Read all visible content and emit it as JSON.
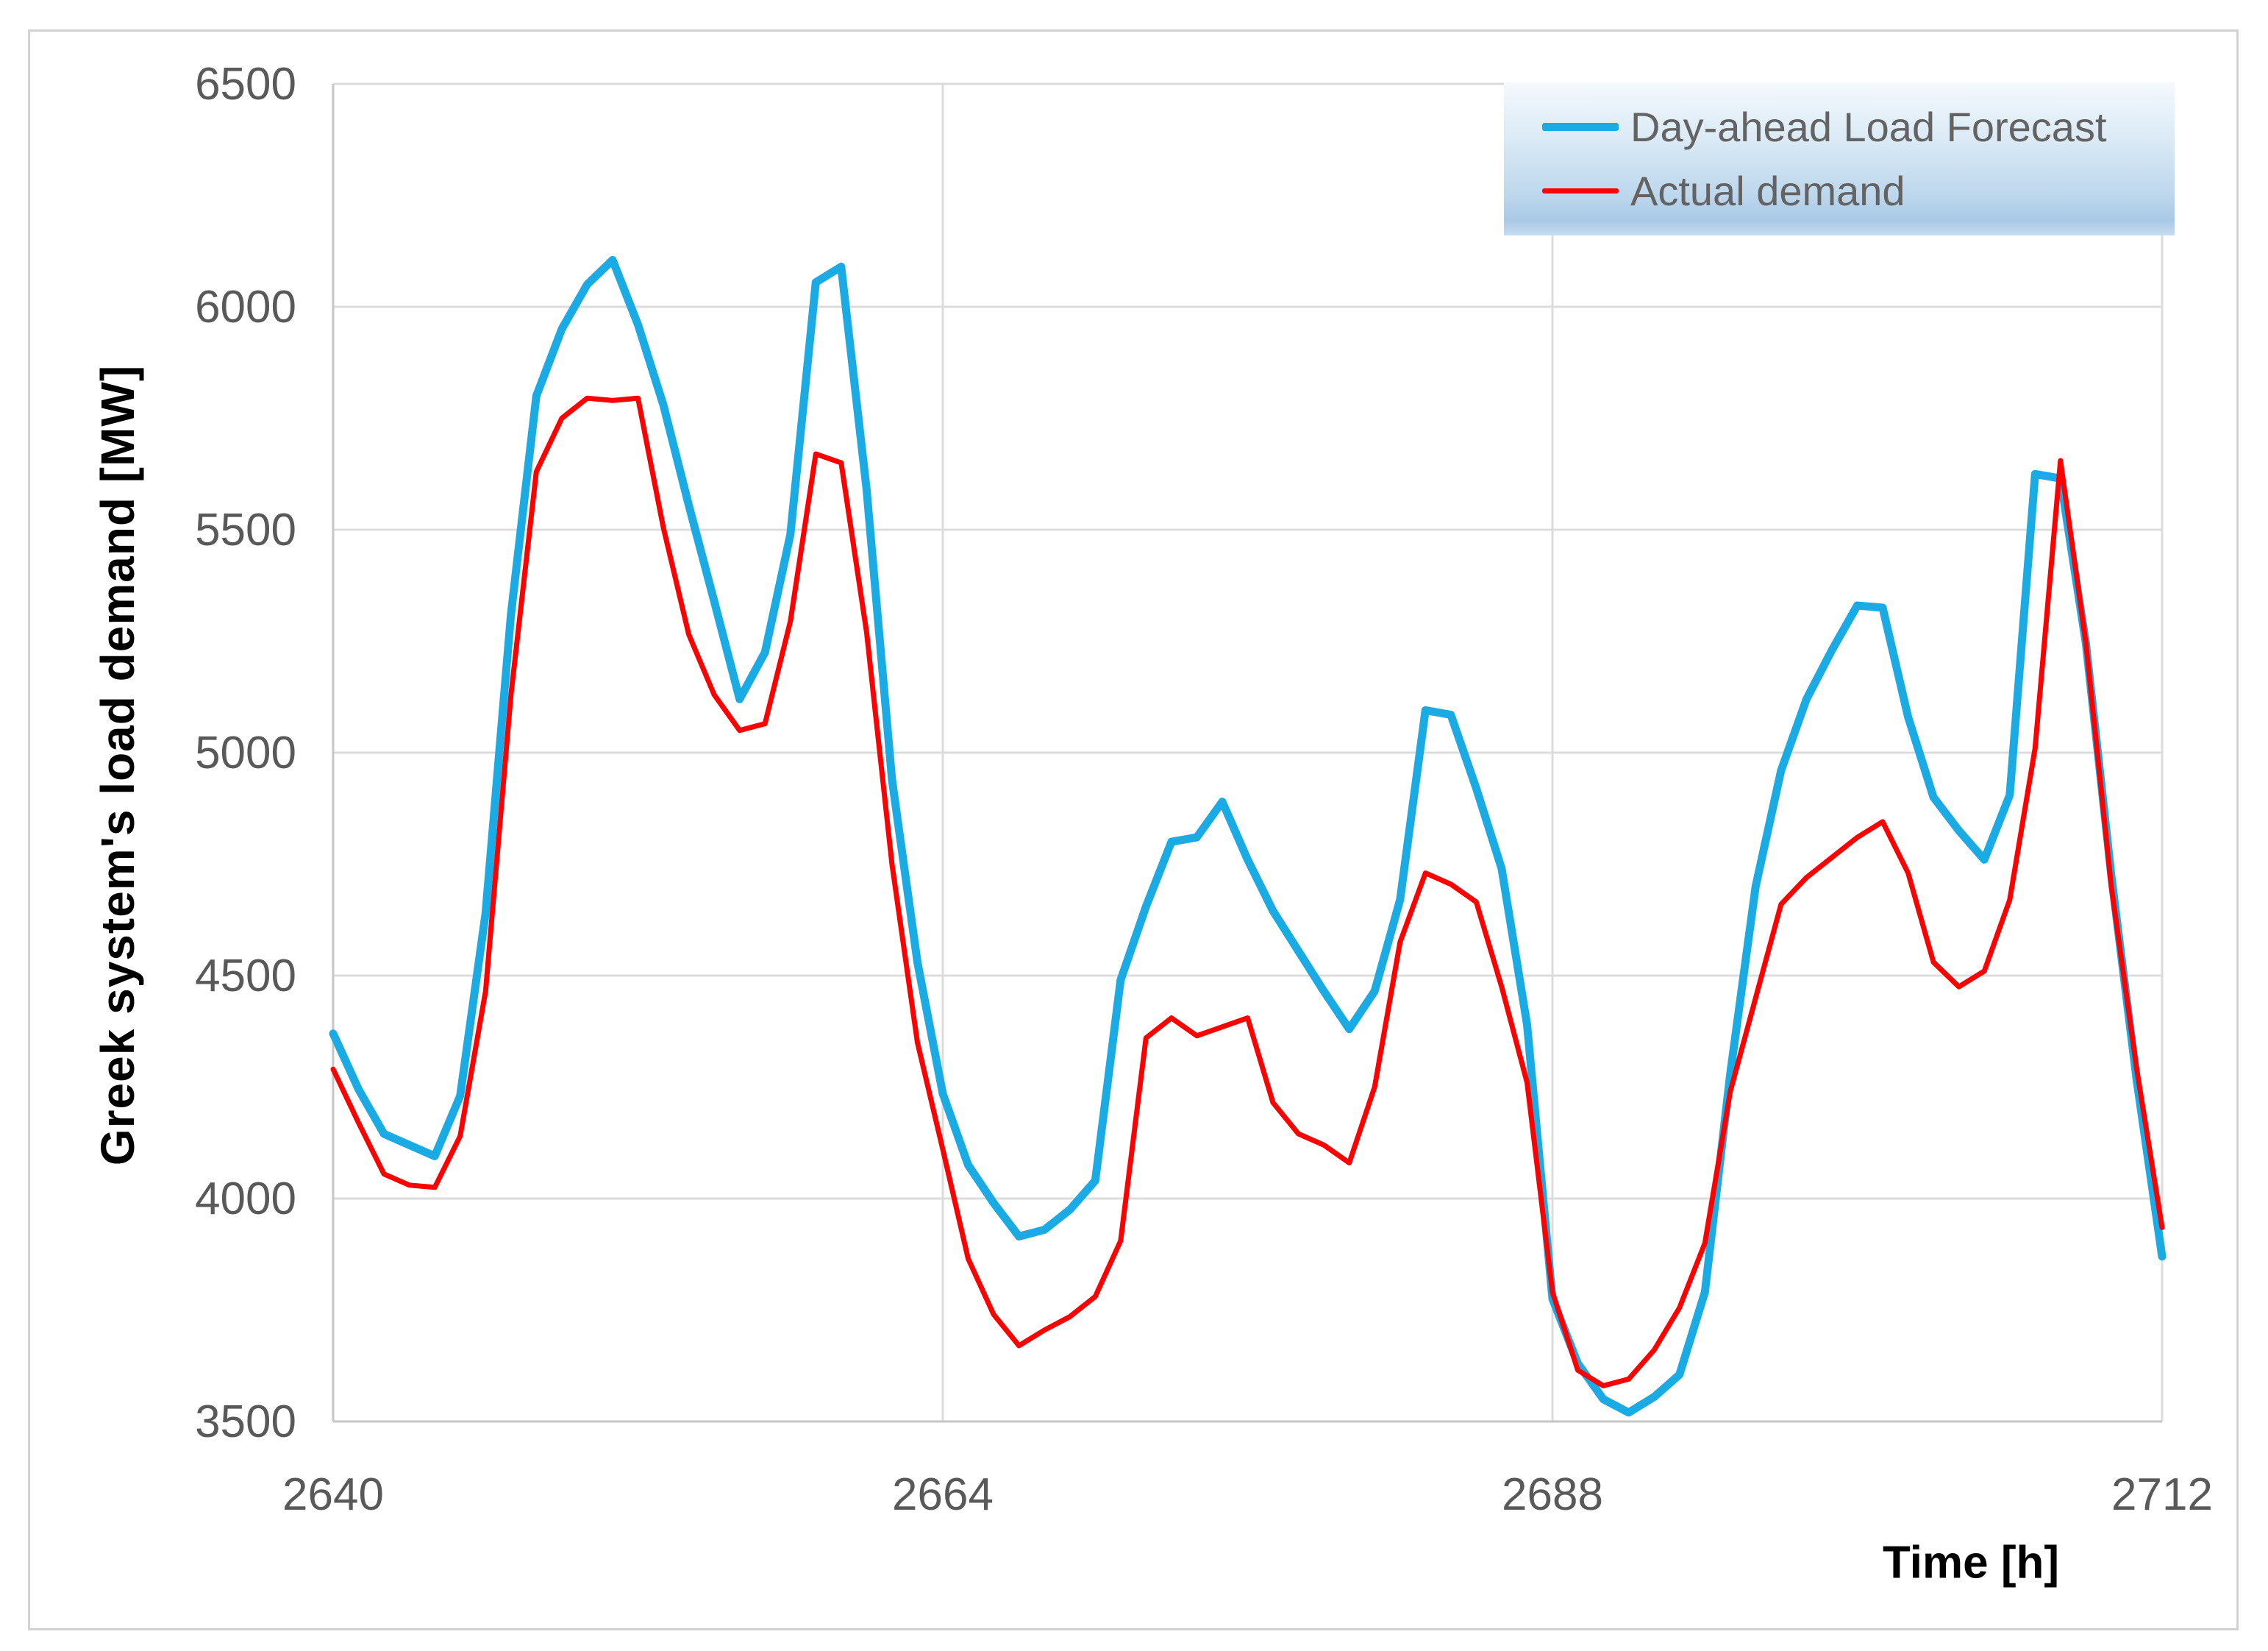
{
  "chart_data": {
    "type": "line",
    "title": "",
    "xlabel": "Time [h]",
    "ylabel": "Greek system's load demand [MW]",
    "xlim": [
      2640,
      2712
    ],
    "ylim": [
      3500,
      6500
    ],
    "xticks": [
      2640,
      2664,
      2688,
      2712
    ],
    "yticks": [
      3500,
      4000,
      4500,
      5000,
      5500,
      6000,
      6500
    ],
    "grid": true,
    "legend_position": "top-right",
    "x_hours": [
      2640,
      2641,
      2642,
      2643,
      2644,
      2645,
      2646,
      2647,
      2648,
      2649,
      2650,
      2651,
      2652,
      2653,
      2654,
      2655,
      2656,
      2657,
      2658,
      2659,
      2660,
      2661,
      2662,
      2663,
      2664,
      2665,
      2666,
      2667,
      2668,
      2669,
      2670,
      2671,
      2672,
      2673,
      2674,
      2675,
      2676,
      2677,
      2678,
      2679,
      2680,
      2681,
      2682,
      2683,
      2684,
      2685,
      2686,
      2687,
      2688,
      2689,
      2690,
      2691,
      2692,
      2693,
      2694,
      2695,
      2696,
      2697,
      2698,
      2699,
      2700,
      2701,
      2702,
      2703,
      2704,
      2705,
      2706,
      2707,
      2708,
      2709,
      2710,
      2711,
      2712
    ],
    "series": [
      {
        "name": "Day-ahead Load Forecast",
        "color": "#1babe4",
        "line_width": 11,
        "values": [
          4370,
          4245,
          4145,
          4120,
          4095,
          4230,
          4640,
          5310,
          5800,
          5950,
          6050,
          6105,
          5960,
          5780,
          5555,
          5340,
          5120,
          5225,
          5490,
          6055,
          6090,
          5590,
          4940,
          4530,
          4235,
          4075,
          3990,
          3915,
          3930,
          3975,
          4040,
          4490,
          4655,
          4800,
          4810,
          4890,
          4760,
          4645,
          4555,
          4465,
          4380,
          4465,
          4670,
          5095,
          5085,
          4920,
          4740,
          4390,
          3775,
          3630,
          3550,
          3520,
          3555,
          3605,
          3790,
          4280,
          4700,
          4960,
          5120,
          5230,
          5330,
          5325,
          5080,
          4900,
          4825,
          4760,
          4905,
          5625,
          5615,
          5245,
          4725,
          4265,
          3870
        ]
      },
      {
        "name": "Actual demand",
        "color": "#ff0000",
        "line_width": 7,
        "values": [
          4290,
          4170,
          4055,
          4030,
          4025,
          4140,
          4465,
          5130,
          5630,
          5750,
          5795,
          5790,
          5795,
          5505,
          5265,
          5130,
          5050,
          5065,
          5295,
          5670,
          5650,
          5270,
          4750,
          4350,
          4110,
          3865,
          3740,
          3670,
          3705,
          3735,
          3780,
          3905,
          4360,
          4405,
          4365,
          4385,
          4405,
          4215,
          4145,
          4120,
          4080,
          4250,
          4575,
          4730,
          4705,
          4665,
          4475,
          4260,
          3790,
          3615,
          3580,
          3595,
          3660,
          3755,
          3900,
          4240,
          4450,
          4660,
          4720,
          4765,
          4810,
          4845,
          4730,
          4530,
          4475,
          4510,
          4670,
          5010,
          5655,
          5245,
          4700,
          4290,
          3935
        ]
      }
    ],
    "style": {
      "gridline_color": "#dcdcdc",
      "axis_line_color": "#c6c6c6",
      "tick_label_color": "#595959",
      "legend_text_color": "#636363",
      "plot_background": "#ffffff"
    }
  }
}
